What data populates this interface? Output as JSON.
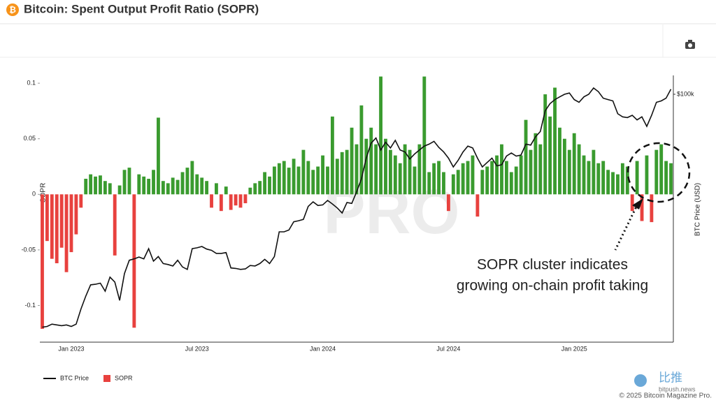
{
  "chart_data": {
    "type": "bar_line",
    "title": "Bitcoin: Spent Output Profit Ratio (SOPR)",
    "ylabel": "SOPR",
    "y2label": "BTC Price (USD)",
    "categories": [
      null,
      null,
      null,
      null,
      null,
      null,
      "Jan 2023",
      null,
      null,
      null,
      null,
      null,
      null,
      null,
      null,
      null,
      null,
      null,
      null,
      null,
      null,
      null,
      null,
      null,
      null,
      null,
      null,
      null,
      null,
      null,
      null,
      null,
      "Jul 2023",
      null,
      null,
      null,
      null,
      null,
      null,
      null,
      null,
      null,
      null,
      null,
      null,
      null,
      null,
      null,
      null,
      null,
      null,
      null,
      null,
      null,
      null,
      null,
      null,
      null,
      "Jan 2024",
      null,
      null,
      null,
      null,
      null,
      null,
      null,
      null,
      null,
      null,
      null,
      null,
      null,
      null,
      null,
      null,
      null,
      null,
      null,
      null,
      null,
      null,
      null,
      null,
      null,
      "Jul 2024",
      null,
      null,
      null,
      null,
      null,
      null,
      null,
      null,
      null,
      null,
      null,
      null,
      null,
      null,
      null,
      null,
      null,
      null,
      null,
      null,
      null,
      null,
      null,
      null,
      null,
      "Jan 2025",
      null,
      null,
      null,
      null,
      null,
      null,
      null,
      null,
      null,
      null,
      null,
      null,
      null,
      null,
      null,
      null,
      null,
      null,
      null,
      null
    ],
    "series": [
      {
        "name": "SOPR",
        "kind": "bar",
        "color": "#e8413e",
        "positive_color": "#3a9b2f",
        "values": [
          -0.121,
          -0.042,
          -0.058,
          -0.062,
          -0.048,
          -0.07,
          -0.052,
          -0.036,
          -0.012,
          0.014,
          0.018,
          0.016,
          0.017,
          0.012,
          0.01,
          -0.055,
          0.008,
          0.022,
          0.024,
          -0.12,
          0.018,
          0.016,
          0.014,
          0.022,
          0.069,
          0.012,
          0.01,
          0.015,
          0.013,
          0.02,
          0.024,
          0.03,
          0.018,
          0.015,
          0.012,
          -0.012,
          0.01,
          -0.015,
          0.007,
          -0.014,
          -0.01,
          -0.012,
          -0.008,
          0.006,
          0.01,
          0.012,
          0.02,
          0.016,
          0.025,
          0.028,
          0.03,
          0.024,
          0.032,
          0.025,
          0.04,
          0.03,
          0.022,
          0.025,
          0.035,
          0.025,
          0.07,
          0.032,
          0.038,
          0.04,
          0.06,
          0.045,
          0.08,
          0.05,
          0.06,
          0.045,
          0.106,
          0.05,
          0.04,
          0.035,
          0.028,
          0.045,
          0.04,
          0.025,
          0.045,
          0.106,
          0.02,
          0.028,
          0.03,
          0.02,
          -0.015,
          0.018,
          0.022,
          0.028,
          0.03,
          0.035,
          -0.02,
          0.022,
          0.025,
          0.03,
          0.035,
          0.045,
          0.03,
          0.02,
          0.025,
          0.035,
          0.067,
          0.04,
          0.055,
          0.045,
          0.09,
          0.07,
          0.096,
          0.06,
          0.05,
          0.04,
          0.055,
          0.045,
          0.035,
          0.03,
          0.04,
          0.028,
          0.03,
          0.022,
          0.02,
          0.018,
          0.028,
          0.025,
          -0.015,
          0.03,
          -0.024,
          0.035,
          -0.025,
          0.04,
          0.045,
          0.03,
          0.028
        ]
      },
      {
        "name": "BTC Price",
        "kind": "line",
        "axis": "y2",
        "color": "#111111",
        "values": [
          16500,
          16600,
          16900,
          16800,
          16700,
          16800,
          16600,
          16900,
          19000,
          21000,
          22900,
          23000,
          23200,
          21800,
          24300,
          23400,
          20300,
          25000,
          27700,
          28000,
          28400,
          28000,
          30300,
          27500,
          28500,
          27000,
          26800,
          26500,
          27700,
          26300,
          25800,
          30300,
          30500,
          30800,
          30200,
          29900,
          29200,
          29200,
          29400,
          26100,
          26000,
          25800,
          25900,
          26600,
          26500,
          27000,
          27900,
          27000,
          28500,
          34500,
          34500,
          35000,
          37300,
          37600,
          38000,
          42000,
          43500,
          42300,
          42500,
          44000,
          42800,
          41500,
          39900,
          43300,
          43000,
          47000,
          52000,
          61000,
          68500,
          71300,
          65000,
          69000,
          66000,
          70000,
          65000,
          64000,
          60600,
          63000,
          65000,
          67000,
          68000,
          69500,
          66300,
          64000,
          61000,
          57000,
          60000,
          64000,
          67000,
          66000,
          61000,
          57000,
          59000,
          61000,
          57500,
          58000,
          62000,
          63500,
          62000,
          62500,
          68000,
          67500,
          72000,
          75000,
          88000,
          93000,
          96000,
          98000,
          100000,
          101000,
          96000,
          94000,
          98000,
          100000,
          105000,
          102000,
          97000,
          96000,
          95000,
          86000,
          84000,
          83500,
          85000,
          82000,
          84000,
          78000,
          85000,
          94000,
          95000,
          97000,
          104000
        ]
      }
    ],
    "ylim": [
      -0.133,
      0.107
    ],
    "yticks": [
      -0.1,
      -0.05,
      0,
      0.05,
      0.1
    ],
    "y2lim": [
      14700,
      115700
    ],
    "y2_log": true,
    "y2ticks": [
      {
        "value": 100000,
        "label": "$100k"
      }
    ],
    "grid": false,
    "legend": "bottom-left",
    "annotation": [
      "SOPR cluster indicates",
      "growing on-chain profit taking"
    ]
  },
  "footer": {
    "brand": "比推",
    "site": "bitpush.news",
    "copyright": "© 2025 Bitcoin Magazine Pro."
  }
}
